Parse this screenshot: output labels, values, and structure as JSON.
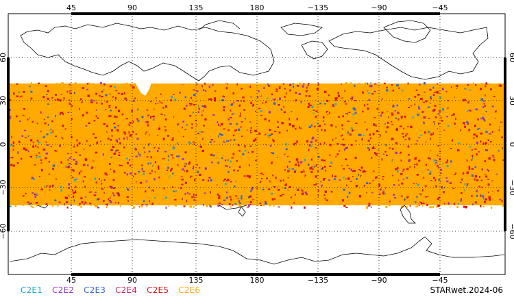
{
  "map": {
    "lon_ticks": [
      "45",
      "90",
      "135",
      "180",
      "−135",
      "−90",
      "−45"
    ],
    "lat_ticks": [
      "60",
      "30",
      "0",
      "−30",
      "−60"
    ],
    "lat_band": [
      -45,
      45
    ],
    "clear_region": "Tibetan Plateau (no data)",
    "point_colors": {
      "C2E1": "#22aacc",
      "C2E2": "#9933cc",
      "C2E3": "#3366cc",
      "C2E4": "#cc2255",
      "C2E5": "#dd1111",
      "C2E6": "#ffaa00"
    },
    "dominant_series": "C2E6"
  },
  "legend": {
    "items": [
      {
        "label": "C2E1",
        "color": "#22aacc"
      },
      {
        "label": "C2E2",
        "color": "#9933cc"
      },
      {
        "label": "C2E3",
        "color": "#3366cc"
      },
      {
        "label": "C2E4",
        "color": "#cc2255"
      },
      {
        "label": "C2E5",
        "color": "#dd1111"
      },
      {
        "label": "C2E6",
        "color": "#ffaa00"
      }
    ]
  },
  "footer": {
    "label": "STARwet.2024-06"
  }
}
